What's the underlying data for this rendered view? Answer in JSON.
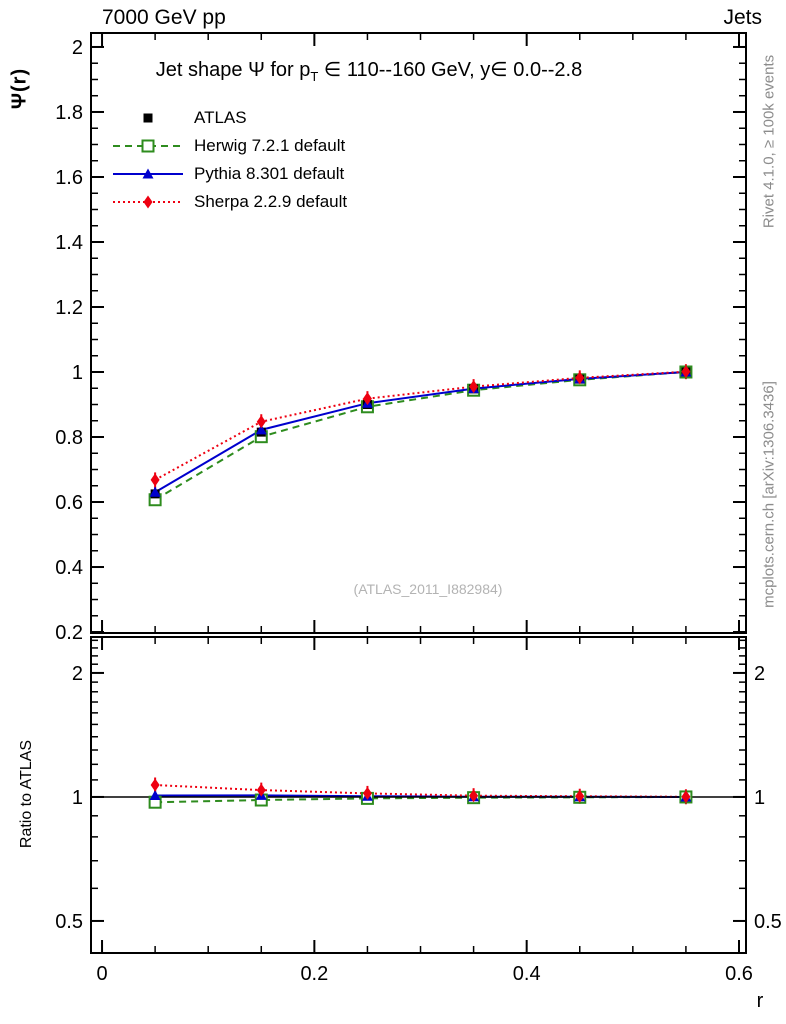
{
  "header": {
    "beam": "7000 GeV pp",
    "process": "Jets"
  },
  "side_notes": {
    "rivet": "Rivet 4.1.0, ≥ 100k events",
    "mcplots": "mcplots.cern.ch [arXiv:1306.3436]"
  },
  "watermark": "(ATLAS_2011_I882984)",
  "title": {
    "pre": "Jet shape Ψ for p",
    "sub": "T",
    "post": " ∈ 110--160 GeV, y∈ 0.0--2.8"
  },
  "chart_data": {
    "type": "line",
    "title": "Jet shape Ψ for pT ∈ 110--160 GeV, y ∈ 0.0--2.8",
    "xlabel": "r",
    "x": [
      0.05,
      0.15,
      0.25,
      0.35,
      0.45,
      0.55
    ],
    "xticks": [
      0,
      0.2,
      0.4,
      0.6
    ],
    "xtick_labels": [
      "0",
      "0.2",
      "0.4",
      "0.6"
    ],
    "xminor_step": 0.05,
    "xlim": [
      -0.0104,
      0.6066
    ],
    "legend_position": "top-left",
    "grid": false,
    "panels": [
      {
        "name": "main",
        "ylabel": "Ψ(r)",
        "yscale": "linear",
        "ylim": [
          0.197,
          2.043
        ],
        "yticks": [
          0.2,
          0.4,
          0.6,
          0.8,
          1,
          1.2,
          1.4,
          1.6,
          1.8,
          2
        ],
        "ytick_labels": [
          "0.2",
          "0.4",
          "0.6",
          "0.8",
          "1",
          "1.2",
          "1.4",
          "1.6",
          "1.8",
          "2"
        ],
        "yminor_step": 0.05,
        "label_sides": [
          "left"
        ],
        "series": [
          {
            "name": "ATLAS",
            "color": "#000000",
            "line": "none",
            "marker": "square-filled",
            "values": [
              0.625,
              0.815,
              0.9,
              0.948,
              0.978,
              1.0
            ]
          },
          {
            "name": "Herwig 7.2.1 default",
            "color": "#2e8c1e",
            "line": "dashed",
            "marker": "square-open",
            "values": [
              0.607,
              0.801,
              0.893,
              0.944,
              0.976,
              1.0
            ]
          },
          {
            "name": "Pythia 8.301 default",
            "color": "#0000cd",
            "line": "solid",
            "marker": "triangle-filled",
            "values": [
              0.63,
              0.822,
              0.904,
              0.949,
              0.979,
              1.0
            ]
          },
          {
            "name": "Sherpa 2.2.9 default",
            "color": "#ee0011",
            "line": "dotted",
            "marker": "diamond-filled",
            "values": [
              0.668,
              0.847,
              0.918,
              0.955,
              0.982,
              1.001
            ]
          }
        ]
      },
      {
        "name": "ratio",
        "ylabel": "Ratio to ATLAS",
        "yscale": "log",
        "ylim": [
          0.418,
          2.445
        ],
        "yticks": [
          0.5,
          1,
          2
        ],
        "ytick_labels": [
          "0.5",
          "1",
          "2"
        ],
        "yminor": [
          0.6,
          0.7,
          0.8,
          0.9,
          1.1,
          1.2,
          1.3,
          1.4,
          1.5,
          1.6,
          1.7,
          1.8,
          1.9,
          2.1,
          2.2,
          2.3,
          2.4
        ],
        "label_sides": [
          "left",
          "right"
        ],
        "reference_line": 1,
        "series": [
          {
            "name": "Herwig 7.2.1 default",
            "color": "#2e8c1e",
            "line": "dashed",
            "marker": "square-open",
            "values": [
              0.971,
              0.983,
              0.992,
              0.996,
              0.998,
              1.0
            ]
          },
          {
            "name": "Pythia 8.301 default",
            "color": "#0000cd",
            "line": "solid",
            "marker": "triangle-filled",
            "values": [
              1.008,
              1.009,
              1.004,
              1.001,
              1.001,
              1.0
            ]
          },
          {
            "name": "Sherpa 2.2.9 default",
            "color": "#ee0011",
            "line": "dotted",
            "marker": "diamond-filled",
            "values": [
              1.069,
              1.039,
              1.02,
              1.007,
              1.004,
              1.001
            ]
          }
        ]
      }
    ]
  }
}
